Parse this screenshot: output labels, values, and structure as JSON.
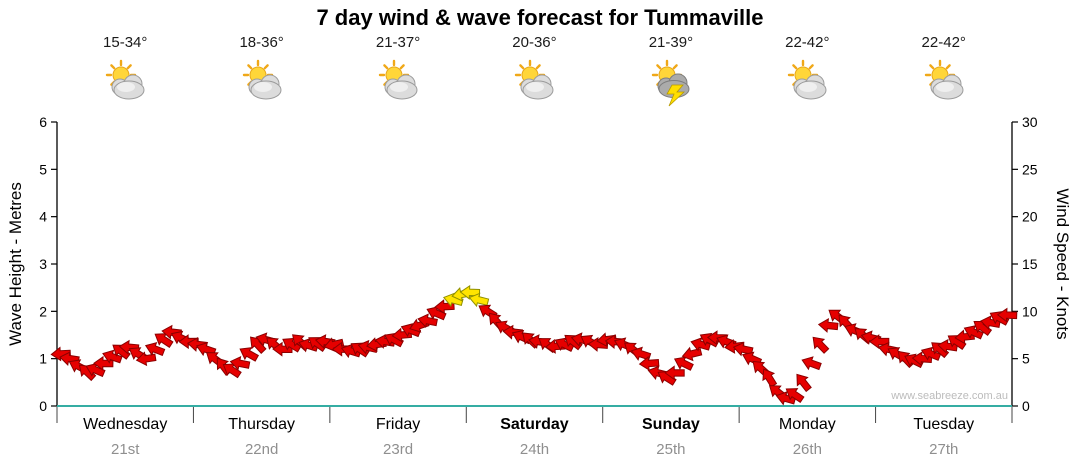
{
  "title": "7 day wind & wave forecast for Tummaville",
  "watermark": "www.seabreeze.com.au",
  "left_axis": {
    "label": "Wave Height - Metres",
    "min": 0,
    "max": 6,
    "ticks": [
      0,
      1,
      2,
      3,
      4,
      5,
      6
    ]
  },
  "right_axis": {
    "label": "Wind Speed - Knots",
    "min": 0,
    "max": 30,
    "ticks": [
      0,
      5,
      10,
      15,
      20,
      25,
      30
    ]
  },
  "days": [
    {
      "name": "Wednesday",
      "date": "21st",
      "temp": "15-34°",
      "icon": "partly-cloudy",
      "bold": false
    },
    {
      "name": "Thursday",
      "date": "22nd",
      "temp": "18-36°",
      "icon": "partly-cloudy",
      "bold": false
    },
    {
      "name": "Friday",
      "date": "23rd",
      "temp": "21-37°",
      "icon": "partly-cloudy",
      "bold": false
    },
    {
      "name": "Saturday",
      "date": "24th",
      "temp": "20-36°",
      "icon": "partly-cloudy",
      "bold": true
    },
    {
      "name": "Sunday",
      "date": "25th",
      "temp": "21-39°",
      "icon": "thunderstorm",
      "bold": true
    },
    {
      "name": "Monday",
      "date": "26th",
      "temp": "22-42°",
      "icon": "partly-cloudy",
      "bold": false
    },
    {
      "name": "Tuesday",
      "date": "27th",
      "temp": "22-42°",
      "icon": "partly-cloudy",
      "bold": false
    }
  ],
  "colors": {
    "arrow_red": "#e60000",
    "arrow_red_outline": "#8b0000",
    "arrow_yellow": "#ffe400",
    "arrow_yellow_outline": "#8f8f00",
    "axis": "#000000",
    "baseline": "#35ada3",
    "separator": "#444444",
    "date_text": "#8f8f8f"
  },
  "chart_data": {
    "type": "wind-arrows",
    "title": "7 day wind & wave forecast for Tummaville",
    "categories": [
      "Wednesday 21st",
      "Thursday 22nd",
      "Friday 23rd",
      "Saturday 24th",
      "Sunday 25th",
      "Monday 26th",
      "Tuesday 27th"
    ],
    "samples_per_day": 16,
    "ylim_wave_m": [
      0,
      6
    ],
    "ylim_knots": [
      0,
      30
    ],
    "yellow_threshold_knots": 11,
    "knots": [
      5.5,
      5,
      4.2,
      3.6,
      3.8,
      4.5,
      5.2,
      5.8,
      6.2,
      5.5,
      5,
      6,
      7,
      7.8,
      7.2,
      6.8,
      6.5,
      6,
      5,
      4.2,
      3.8,
      4.5,
      5.5,
      6.5,
      7,
      6.5,
      6,
      6.5,
      6.8,
      6.4,
      6.6,
      6.8,
      6.5,
      6,
      5.8,
      6,
      6.2,
      6.5,
      6.8,
      7,
      7.5,
      8,
      8.5,
      9,
      9.8,
      10.5,
      11.2,
      11.8,
      12,
      11.2,
      10,
      9,
      8.3,
      7.8,
      7.3,
      7,
      6.8,
      6.5,
      6.3,
      6.5,
      6.8,
      7,
      6.8,
      6.5,
      7,
      6.8,
      6.5,
      6,
      5.5,
      4.5,
      3.5,
      3,
      3.5,
      4.5,
      5.5,
      6.5,
      7,
      7.2,
      6.8,
      6.3,
      6,
      5,
      4,
      3,
      1.5,
      0.8,
      1.2,
      2.5,
      4.5,
      6.5,
      8.5,
      9.5,
      8.8,
      8,
      7.5,
      7.2,
      6.8,
      6,
      5.5,
      5,
      4.8,
      5,
      5.5,
      6,
      6.3,
      6.8,
      7.3,
      7.8,
      8.3,
      8.8,
      9.3,
      9.6
    ],
    "day_base_directions": [
      195,
      205,
      185,
      200,
      190,
      210,
      198
    ],
    "direction_offsets": [
      -18,
      -6,
      12,
      28,
      8,
      -14,
      4,
      22,
      -10,
      16,
      -24,
      6,
      18,
      -8,
      10,
      -16
    ]
  }
}
